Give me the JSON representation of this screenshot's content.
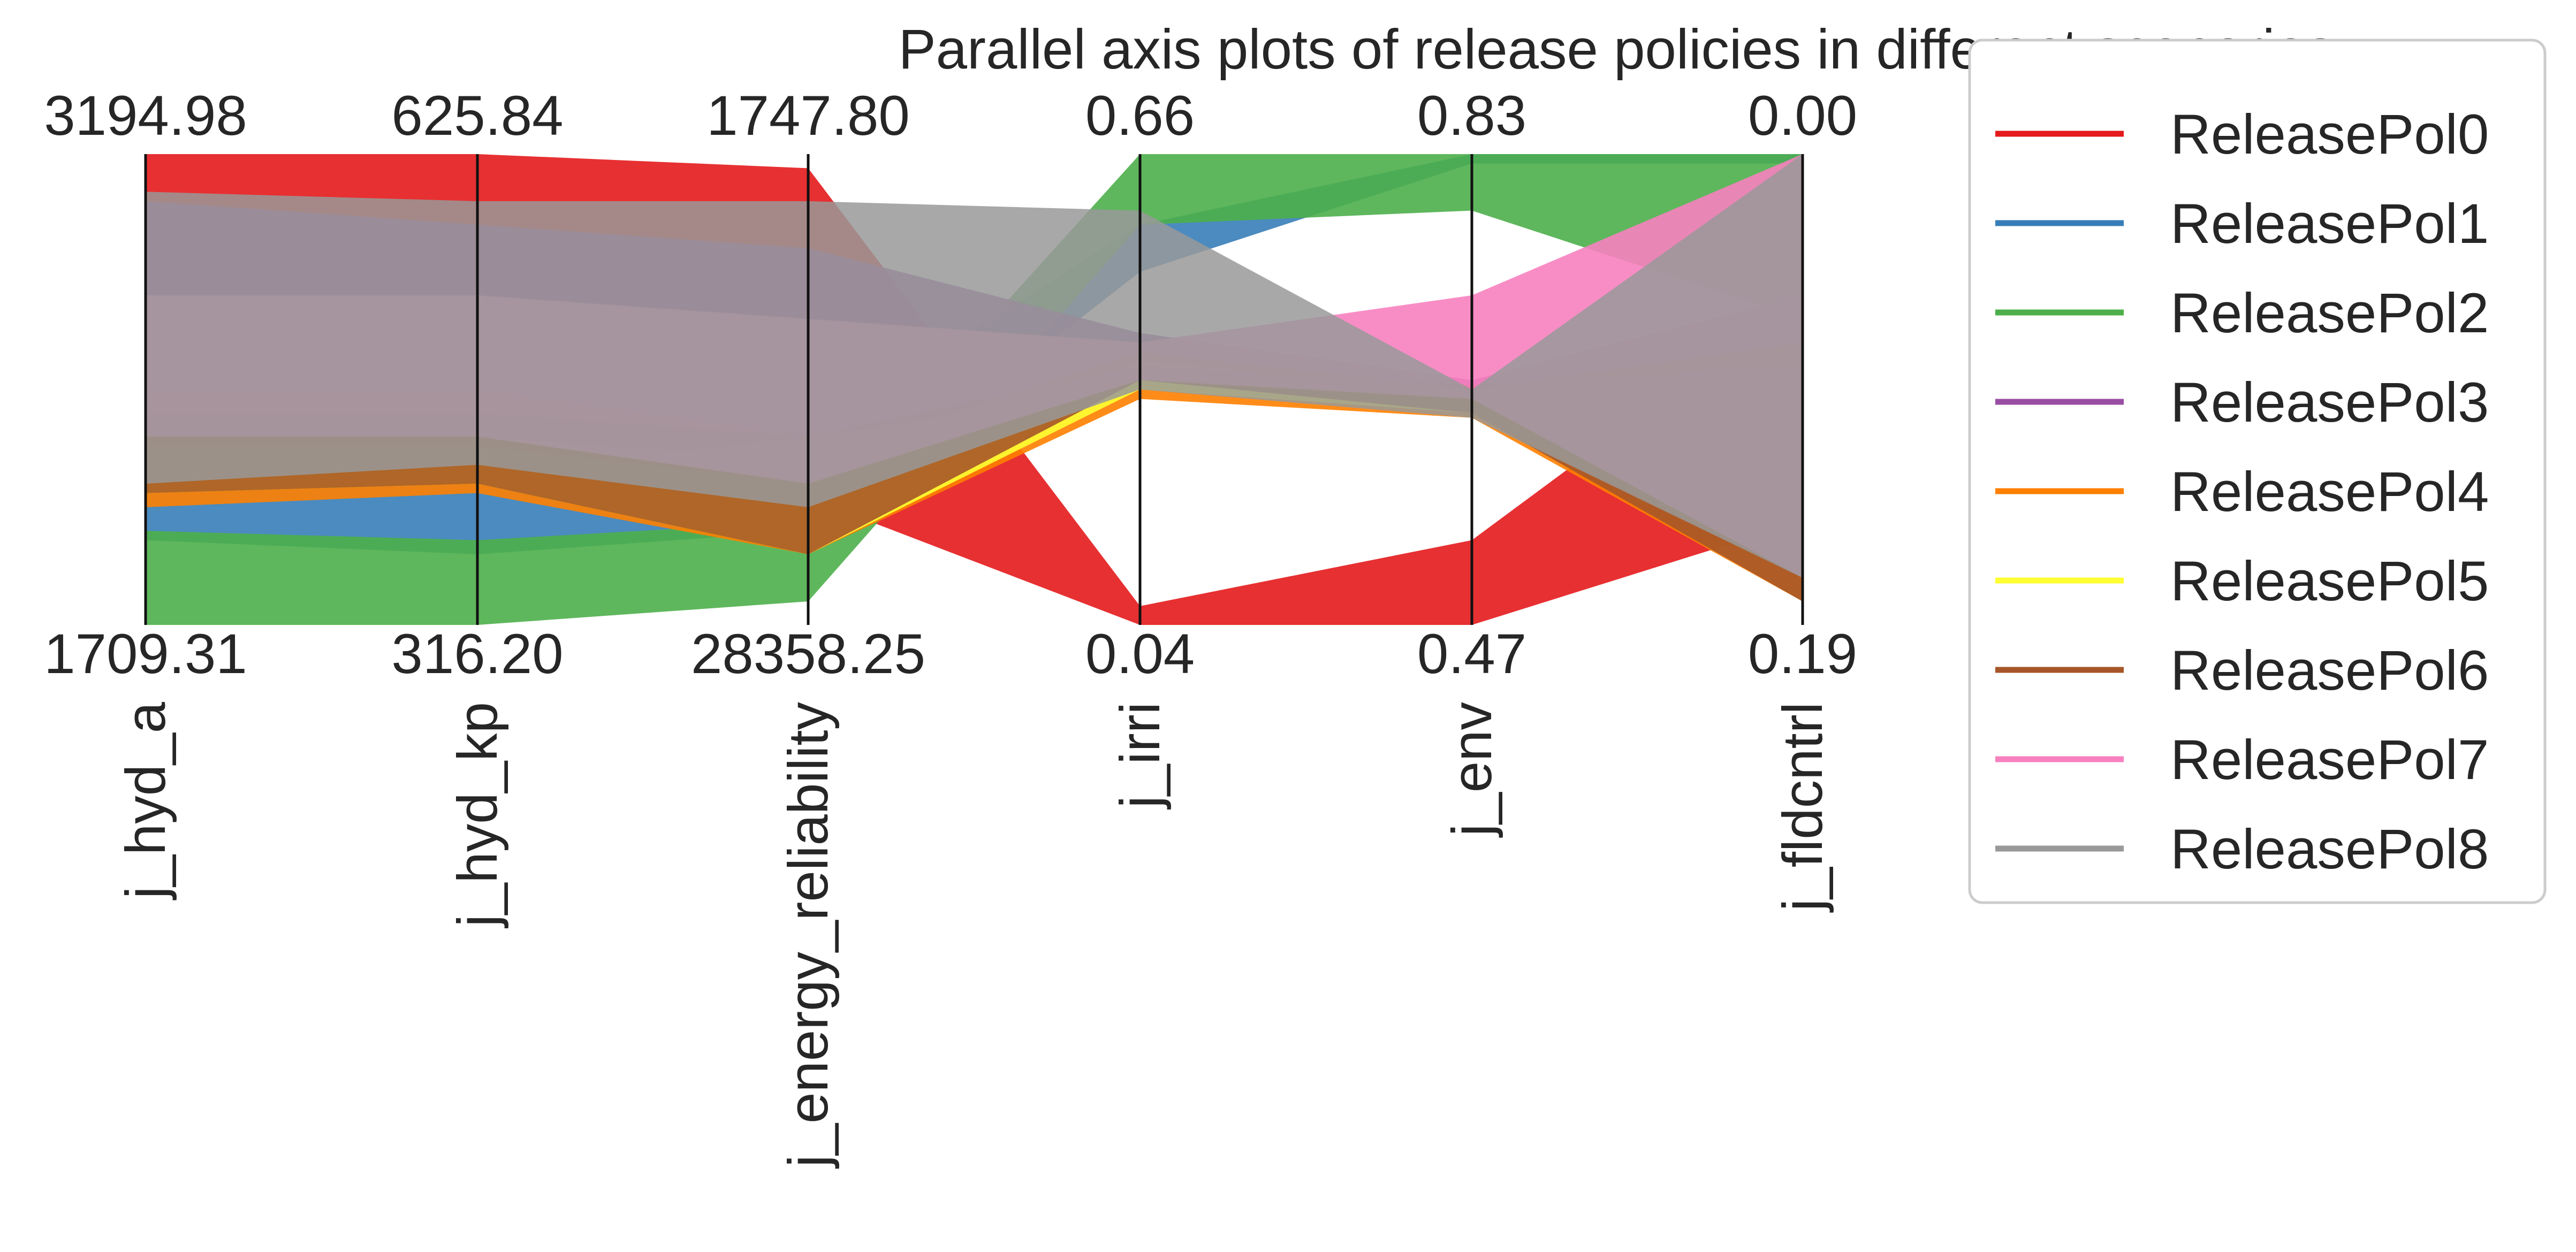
{
  "chart_data": {
    "type": "parallel_coordinates",
    "title": "Parallel axis plots of release policies in different scenarios",
    "axes": [
      {
        "name": "j_hyd_a",
        "top": "3194.98",
        "bottom": "1709.31"
      },
      {
        "name": "j_hyd_kp",
        "top": "625.84",
        "bottom": "316.20"
      },
      {
        "name": "j_energy_reliability",
        "top": "1747.80",
        "bottom": "28358.25"
      },
      {
        "name": "j_irri",
        "top": "0.66",
        "bottom": "0.04"
      },
      {
        "name": "j_env",
        "top": "0.83",
        "bottom": "0.47"
      },
      {
        "name": "j_fldcntrl",
        "top": "0.00",
        "bottom": "0.19"
      }
    ],
    "legend_position": "right",
    "grid": false,
    "series": [
      {
        "name": "ReleasePol0",
        "color": "#e41a1c",
        "bands": [
          [
            0.0,
            0.7
          ],
          [
            0.0,
            0.66
          ],
          [
            0.03,
            0.73
          ],
          [
            0.96,
            1.0
          ],
          [
            0.82,
            1.0
          ],
          [
            0.3,
            0.78
          ]
        ]
      },
      {
        "name": "ReleasePol1",
        "color": "#377eb8",
        "bands": [
          [
            0.72,
            0.82
          ],
          [
            0.68,
            0.85
          ],
          [
            0.6,
            0.8
          ],
          [
            0.15,
            0.25
          ],
          [
            0.0,
            0.02
          ],
          [
            0.0,
            0.02
          ]
        ]
      },
      {
        "name": "ReleasePol2",
        "color": "#4daf4a",
        "bands": [
          [
            0.8,
            1.0
          ],
          [
            0.82,
            1.0
          ],
          [
            0.78,
            0.95
          ],
          [
            0.0,
            0.15
          ],
          [
            0.0,
            0.12
          ],
          [
            0.0,
            0.35
          ]
        ]
      },
      {
        "name": "ReleasePol3",
        "color": "#984ea3",
        "bands": [
          [
            0.1,
            0.5
          ],
          [
            0.15,
            0.5
          ],
          [
            0.2,
            0.6
          ],
          [
            0.38,
            0.5
          ],
          [
            0.48,
            0.54
          ],
          [
            0.3,
            0.9
          ]
        ]
      },
      {
        "name": "ReleasePol4",
        "color": "#ff7f00",
        "bands": [
          [
            0.6,
            0.75
          ],
          [
            0.6,
            0.72
          ],
          [
            0.65,
            0.85
          ],
          [
            0.42,
            0.52
          ],
          [
            0.5,
            0.56
          ],
          [
            0.4,
            0.95
          ]
        ]
      },
      {
        "name": "ReleasePol5",
        "color": "#ffff33",
        "bands": [
          [
            0.62,
            0.72
          ],
          [
            0.62,
            0.7
          ],
          [
            0.7,
            0.85
          ],
          [
            0.44,
            0.5
          ],
          [
            0.5,
            0.55
          ],
          [
            0.5,
            0.9
          ]
        ]
      },
      {
        "name": "ReleasePol6",
        "color": "#a65628",
        "bands": [
          [
            0.55,
            0.72
          ],
          [
            0.55,
            0.7
          ],
          [
            0.6,
            0.85
          ],
          [
            0.45,
            0.48
          ],
          [
            0.49,
            0.55
          ],
          [
            0.45,
            0.95
          ]
        ]
      },
      {
        "name": "ReleasePol7",
        "color": "#f781bf",
        "bands": [
          [
            0.3,
            0.6
          ],
          [
            0.3,
            0.6
          ],
          [
            0.35,
            0.7
          ],
          [
            0.4,
            0.48
          ],
          [
            0.3,
            0.52
          ],
          [
            0.0,
            0.9
          ]
        ]
      },
      {
        "name": "ReleasePol8",
        "color": "#999999",
        "bands": [
          [
            0.08,
            0.7
          ],
          [
            0.1,
            0.66
          ],
          [
            0.1,
            0.75
          ],
          [
            0.12,
            0.5
          ],
          [
            0.5,
            0.56
          ],
          [
            0.0,
            0.9
          ]
        ]
      }
    ]
  }
}
